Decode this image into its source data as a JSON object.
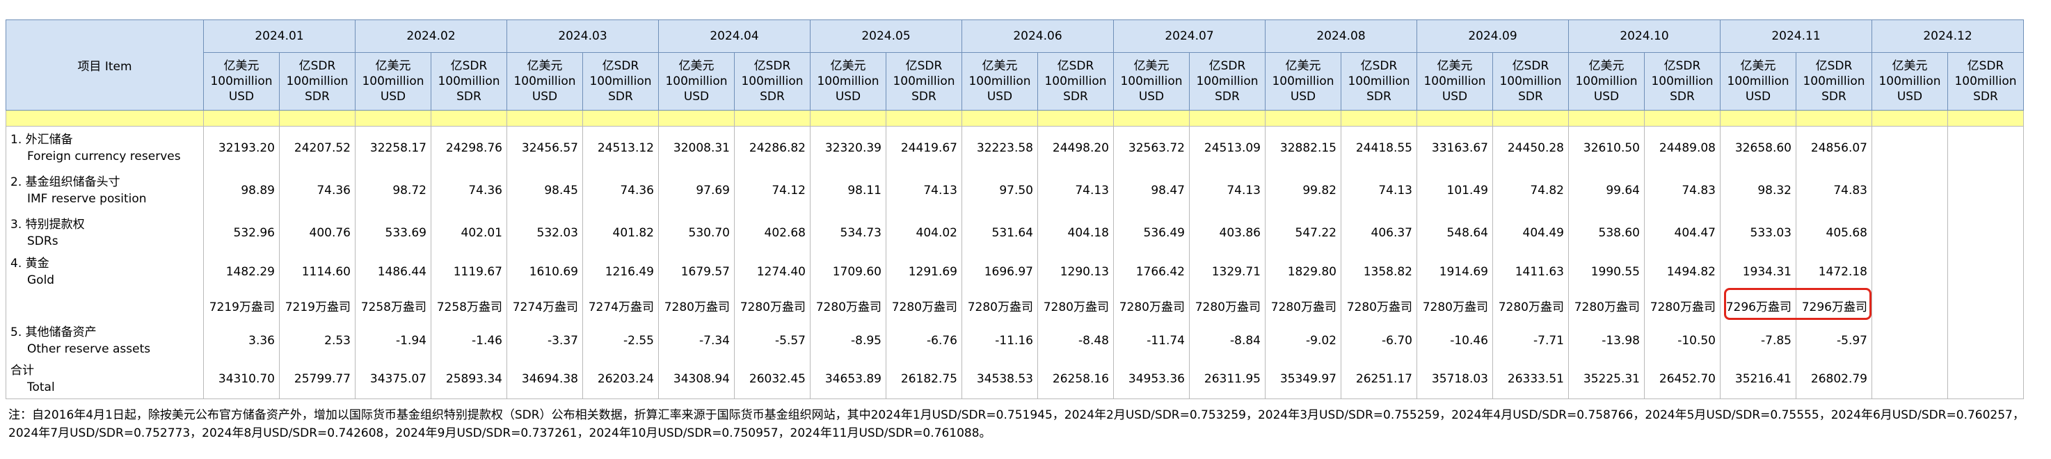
{
  "table": {
    "header": {
      "item": "项目 Item",
      "months": [
        "2024.01",
        "2024.02",
        "2024.03",
        "2024.04",
        "2024.05",
        "2024.06",
        "2024.07",
        "2024.08",
        "2024.09",
        "2024.10",
        "2024.11",
        "2024.12"
      ],
      "units": {
        "usd": [
          "亿美元",
          "100million",
          "USD"
        ],
        "sdr": [
          "亿SDR",
          "100million",
          "SDR"
        ]
      }
    },
    "rows": [
      {
        "label": [
          "1. 外汇储备",
          "Foreign currency reserves"
        ],
        "values": [
          "32193.20",
          "24207.52",
          "32258.17",
          "24298.76",
          "32456.57",
          "24513.12",
          "32008.31",
          "24286.82",
          "32320.39",
          "24419.67",
          "32223.58",
          "24498.20",
          "32563.72",
          "24513.09",
          "32882.15",
          "24418.55",
          "33163.67",
          "24450.28",
          "32610.50",
          "24489.08",
          "32658.60",
          "24856.07"
        ]
      },
      {
        "label": [
          "2. 基金组织储备头寸",
          "IMF reserve position"
        ],
        "values": [
          "98.89",
          "74.36",
          "98.72",
          "74.36",
          "98.45",
          "74.36",
          "97.69",
          "74.12",
          "98.11",
          "74.13",
          "97.50",
          "74.13",
          "98.47",
          "74.13",
          "99.82",
          "74.13",
          "101.49",
          "74.82",
          "99.64",
          "74.83",
          "98.32",
          "74.83"
        ]
      },
      {
        "label": [
          "3. 特别提款权",
          "SDRs"
        ],
        "values": [
          "532.96",
          "400.76",
          "533.69",
          "402.01",
          "532.03",
          "401.82",
          "530.70",
          "402.68",
          "534.73",
          "404.02",
          "531.64",
          "404.18",
          "536.49",
          "403.86",
          "547.22",
          "406.37",
          "548.64",
          "404.49",
          "538.60",
          "404.47",
          "533.03",
          "405.68"
        ]
      },
      {
        "label": [
          "4. 黄金",
          "Gold"
        ],
        "values": [
          "1482.29",
          "1114.60",
          "1486.44",
          "1119.67",
          "1610.69",
          "1216.49",
          "1679.57",
          "1274.40",
          "1709.60",
          "1291.69",
          "1696.97",
          "1290.13",
          "1766.42",
          "1329.71",
          "1829.80",
          "1358.82",
          "1914.69",
          "1411.63",
          "1990.55",
          "1494.82",
          "1934.31",
          "1472.18"
        ]
      },
      {
        "values": [
          "7219万盎司",
          "7219万盎司",
          "7258万盎司",
          "7258万盎司",
          "7274万盎司",
          "7274万盎司",
          "7280万盎司",
          "7280万盎司",
          "7280万盎司",
          "7280万盎司",
          "7280万盎司",
          "7280万盎司",
          "7280万盎司",
          "7280万盎司",
          "7280万盎司",
          "7280万盎司",
          "7280万盎司",
          "7280万盎司",
          "7280万盎司",
          "7280万盎司",
          "7296万盎司",
          "7296万盎司"
        ]
      },
      {
        "label": [
          "5. 其他储备资产",
          "Other reserve assets"
        ],
        "values": [
          "3.36",
          "2.53",
          "-1.94",
          "-1.46",
          "-3.37",
          "-2.55",
          "-7.34",
          "-5.57",
          "-8.95",
          "-6.76",
          "-11.16",
          "-8.48",
          "-11.74",
          "-8.84",
          "-9.02",
          "-6.70",
          "-10.46",
          "-7.71",
          "-13.98",
          "-10.50",
          "-7.85",
          "-5.97"
        ]
      },
      {
        "label": [
          "合计",
          "Total"
        ],
        "values": [
          "34310.70",
          "25799.77",
          "34375.07",
          "25893.34",
          "34694.38",
          "26203.24",
          "34308.94",
          "26032.45",
          "34653.89",
          "26182.75",
          "34538.53",
          "26258.16",
          "34953.36",
          "26311.95",
          "35349.97",
          "26251.17",
          "35718.03",
          "26333.51",
          "35225.31",
          "26452.70",
          "35216.41",
          "26802.79"
        ]
      }
    ],
    "note": "注：自2016年4月1日起，除按美元公布官方储备资产外，增加以国际货币基金组织特别提款权（SDR）公布相关数据，折算汇率来源于国际货币基金组织网站，其中2024年1月USD/SDR=0.751945，2024年2月USD/SDR=0.753259，2024年3月USD/SDR=0.755259，2024年4月USD/SDR=0.758766，2024年5月USD/SDR=0.75555，2024年6月USD/SDR=0.760257，2024年7月USD/SDR=0.752773，2024年8月USD/SDR=0.742608，2024年9月USD/SDR=0.737261，2024年10月USD/SDR=0.750957，2024年11月USD/SDR=0.761088。"
  }
}
